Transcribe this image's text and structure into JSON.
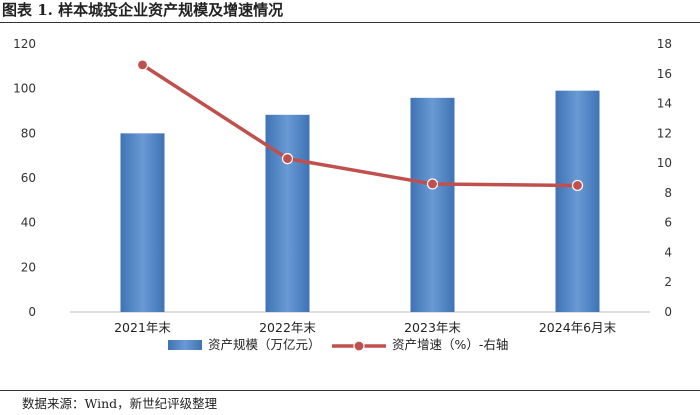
{
  "figure": {
    "title": "图表 1.  样本城投企业资产规模及增速情况",
    "source": "数据来源：Wind，新世纪评级整理"
  },
  "chart_data": {
    "type": "bar+line",
    "categories": [
      "2021年末",
      "2022年末",
      "2023年末",
      "2024年6月末"
    ],
    "series": [
      {
        "name": "资产规模（万亿元）",
        "type": "bar",
        "axis": "left",
        "values": [
          80.0,
          88.3,
          95.9,
          99.1
        ],
        "color": "#4a7ebb"
      },
      {
        "name": "资产增速（%）-右轴",
        "type": "line",
        "axis": "right",
        "values": [
          16.6,
          10.3,
          8.6,
          8.5
        ],
        "color": "#c0504d"
      }
    ],
    "y_left": {
      "min": 0,
      "max": 120,
      "ticks": [
        0,
        20,
        40,
        60,
        80,
        100,
        120
      ]
    },
    "y_right": {
      "min": 0,
      "max": 18,
      "ticks": [
        0,
        2,
        4,
        6,
        8,
        10,
        12,
        14,
        16,
        18
      ]
    },
    "grid": false,
    "legend_position": "bottom"
  }
}
